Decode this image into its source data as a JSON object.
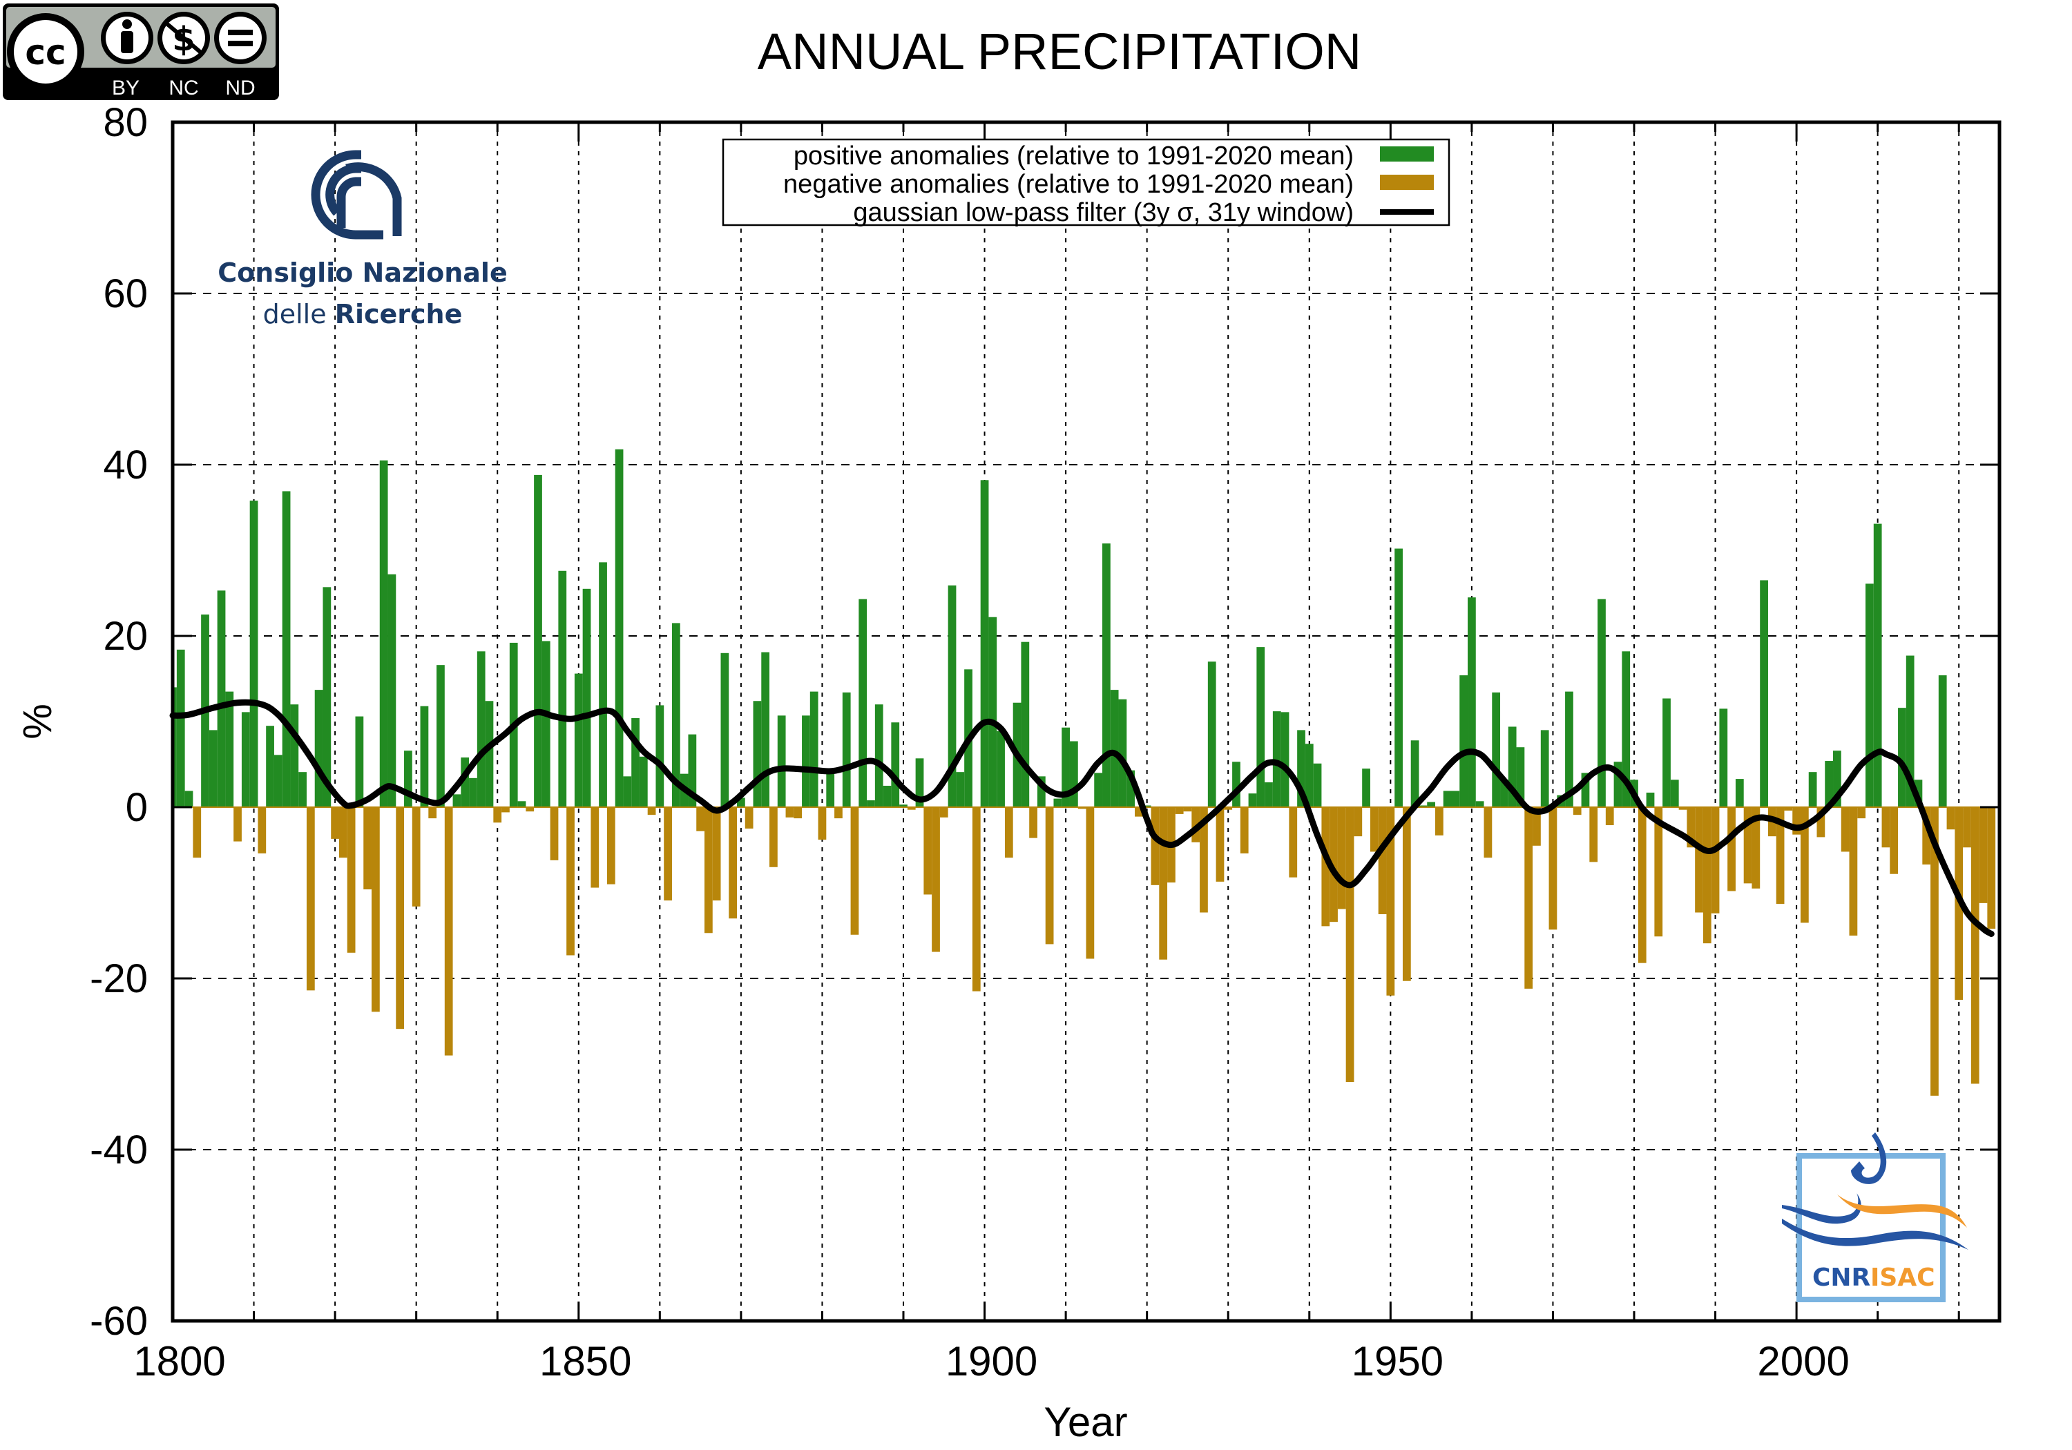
{
  "license_badge": {
    "icon": "creative-commons-by-nc-nd-icon",
    "labels": [
      "BY",
      "NC",
      "ND"
    ],
    "cc_text": "cc"
  },
  "cnr_logo": {
    "line1": "Consiglio Nazionale",
    "line2_light": "delle",
    "line2_bold": "Ricerche",
    "color": "#1b3a66"
  },
  "isac_logo": {
    "left": "CNR",
    "right": "ISAC",
    "blue": "#2655a3",
    "orange": "#f29a2e",
    "frame": "#7ab3e0"
  },
  "colors": {
    "positive": "#228b22",
    "negative": "#b8860b",
    "filter": "#000000"
  },
  "chart_data": {
    "type": "bar",
    "title": "ANNUAL PRECIPITATION",
    "xlabel": "Year",
    "ylabel": "%",
    "xlim": [
      1800,
      2025
    ],
    "ylim": [
      -60,
      80
    ],
    "xticks": [
      1800,
      1850,
      1900,
      1950,
      2000
    ],
    "yticks": [
      -60,
      -40,
      -20,
      0,
      20,
      40,
      60,
      80
    ],
    "grid": true,
    "legend_position": "top-center",
    "legend": [
      {
        "label": "positive anomalies (relative to 1991-2020 mean)",
        "type": "box",
        "color": "#228b22"
      },
      {
        "label": "negative anomalies (relative to 1991-2020 mean)",
        "type": "box",
        "color": "#b8860b"
      },
      {
        "label": "gaussian low-pass filter (3y σ, 31y window)",
        "type": "line",
        "color": "#000000"
      }
    ],
    "start_year": 1800,
    "values": [
      14.0,
      18.4,
      1.9,
      -5.9,
      22.5,
      9.0,
      25.3,
      13.5,
      -4.0,
      11.1,
      35.8,
      -5.4,
      9.5,
      6.1,
      36.9,
      12.0,
      4.1,
      -21.4,
      13.7,
      25.7,
      -3.7,
      -5.9,
      -17.0,
      10.6,
      -9.6,
      -23.9,
      40.5,
      27.2,
      -25.9,
      6.6,
      -11.6,
      11.8,
      -1.3,
      16.6,
      -29.0,
      1.5,
      5.8,
      3.4,
      18.2,
      12.4,
      -1.8,
      -0.6,
      19.2,
      0.7,
      -0.5,
      38.8,
      19.4,
      -6.2,
      27.6,
      -17.3,
      15.6,
      25.5,
      -9.4,
      28.6,
      -9.0,
      41.8,
      3.6,
      10.4,
      5.9,
      -0.9,
      11.9,
      -10.9,
      21.5,
      3.9,
      8.5,
      -2.8,
      -14.7,
      -10.9,
      18.0,
      -13.0,
      1.1,
      -2.5,
      12.4,
      18.1,
      -7.0,
      10.7,
      -1.2,
      -1.3,
      10.7,
      13.5,
      -3.8,
      3.9,
      -1.3,
      13.4,
      -14.9,
      24.3,
      0.8,
      12.0,
      2.5,
      9.9,
      0.3,
      -0.3,
      5.7,
      -10.2,
      -16.9,
      -1.2,
      25.9,
      4.1,
      16.1,
      -21.5,
      38.2,
      22.2,
      8.9,
      -5.9,
      12.2,
      19.3,
      -3.6,
      3.6,
      -16.0,
      1.0,
      9.3,
      7.7,
      -0.2,
      -17.7,
      4.0,
      30.8,
      13.7,
      12.6,
      4.3,
      -1.1,
      0.2,
      -9.1,
      -17.8,
      -8.8,
      -0.8,
      -0.5,
      -4.1,
      -12.3,
      17.0,
      -8.7,
      -0.3,
      5.3,
      -5.4,
      1.6,
      18.7,
      2.9,
      11.2,
      11.1,
      -8.2,
      9.0,
      7.4,
      5.1,
      -13.9,
      -13.4,
      -11.9,
      -32.1,
      -3.4,
      4.5,
      -5.2,
      -12.5,
      -22.0,
      30.2,
      -20.3,
      7.8,
      0.2,
      0.6,
      -3.3,
      1.9,
      1.9,
      15.4,
      24.5,
      0.7,
      -5.9,
      13.4,
      3.2,
      9.4,
      7.0,
      -21.2,
      -4.5,
      9.0,
      -14.3,
      1.4,
      13.5,
      -0.9,
      4.0,
      -6.4,
      24.3,
      -2.1,
      5.3,
      18.2,
      3.2,
      -18.2,
      1.7,
      -15.1,
      12.7,
      3.2,
      -0.3,
      -4.7,
      -12.3,
      -15.9,
      -12.4,
      11.5,
      -9.8,
      3.3,
      -8.9,
      -9.5,
      26.5,
      -3.4,
      -11.3,
      -0.4,
      -3.2,
      -13.5,
      4.1,
      -3.5,
      5.4,
      6.6,
      -5.2,
      -15.0,
      -1.3,
      26.1,
      33.1,
      -4.7,
      -7.8,
      11.6,
      17.7,
      3.2,
      -6.7,
      -33.7,
      15.4,
      -2.6,
      -22.5,
      -4.7,
      -32.3,
      -11.2,
      -14.2
    ],
    "filter": [
      [
        1800,
        10.7
      ],
      [
        1802,
        10.8
      ],
      [
        1805,
        11.6
      ],
      [
        1808,
        12.2
      ],
      [
        1811,
        12.0
      ],
      [
        1813,
        10.8
      ],
      [
        1815,
        8.5
      ],
      [
        1817,
        5.8
      ],
      [
        1819,
        2.8
      ],
      [
        1821,
        0.5
      ],
      [
        1822,
        0.2
      ],
      [
        1824,
        0.9
      ],
      [
        1826,
        2.2
      ],
      [
        1827,
        2.4
      ],
      [
        1829,
        1.6
      ],
      [
        1831,
        0.8
      ],
      [
        1833,
        0.6
      ],
      [
        1835,
        2.5
      ],
      [
        1838,
        6.2
      ],
      [
        1841,
        8.6
      ],
      [
        1843,
        10.3
      ],
      [
        1845,
        11.1
      ],
      [
        1847,
        10.6
      ],
      [
        1849,
        10.3
      ],
      [
        1851,
        10.7
      ],
      [
        1854,
        11.2
      ],
      [
        1856,
        8.9
      ],
      [
        1858,
        6.5
      ],
      [
        1860,
        5.0
      ],
      [
        1862,
        2.9
      ],
      [
        1865,
        0.8
      ],
      [
        1867,
        -0.4
      ],
      [
        1869,
        0.6
      ],
      [
        1871,
        2.3
      ],
      [
        1873,
        3.9
      ],
      [
        1875,
        4.5
      ],
      [
        1878,
        4.4
      ],
      [
        1881,
        4.2
      ],
      [
        1883,
        4.6
      ],
      [
        1886,
        5.4
      ],
      [
        1888,
        4.3
      ],
      [
        1890,
        2.2
      ],
      [
        1892,
        0.9
      ],
      [
        1894,
        1.8
      ],
      [
        1896,
        4.6
      ],
      [
        1898,
        7.8
      ],
      [
        1900,
        9.9
      ],
      [
        1902,
        9.2
      ],
      [
        1904,
        6.1
      ],
      [
        1906,
        3.7
      ],
      [
        1908,
        1.9
      ],
      [
        1910,
        1.5
      ],
      [
        1912,
        2.7
      ],
      [
        1914,
        5.2
      ],
      [
        1916,
        6.3
      ],
      [
        1918,
        3.7
      ],
      [
        1920,
        -1.4
      ],
      [
        1921,
        -3.5
      ],
      [
        1923,
        -4.4
      ],
      [
        1925,
        -3.3
      ],
      [
        1928,
        -0.9
      ],
      [
        1931,
        1.8
      ],
      [
        1933,
        3.7
      ],
      [
        1935,
        5.2
      ],
      [
        1937,
        4.6
      ],
      [
        1939,
        1.8
      ],
      [
        1941,
        -3.3
      ],
      [
        1943,
        -7.5
      ],
      [
        1945,
        -9.1
      ],
      [
        1947,
        -7.3
      ],
      [
        1949,
        -4.7
      ],
      [
        1951,
        -2.2
      ],
      [
        1953,
        0.1
      ],
      [
        1955,
        2.2
      ],
      [
        1957,
        4.7
      ],
      [
        1959,
        6.3
      ],
      [
        1961,
        6.2
      ],
      [
        1963,
        4.2
      ],
      [
        1965,
        2.0
      ],
      [
        1967,
        -0.2
      ],
      [
        1969,
        -0.4
      ],
      [
        1971,
        0.9
      ],
      [
        1973,
        2.2
      ],
      [
        1975,
        4.0
      ],
      [
        1977,
        4.6
      ],
      [
        1979,
        3.0
      ],
      [
        1981,
        -0.1
      ],
      [
        1983,
        -1.7
      ],
      [
        1986,
        -3.3
      ],
      [
        1989,
        -5.1
      ],
      [
        1991,
        -4.2
      ],
      [
        1993,
        -2.5
      ],
      [
        1995,
        -1.3
      ],
      [
        1997,
        -1.4
      ],
      [
        2000,
        -2.4
      ],
      [
        2002,
        -1.6
      ],
      [
        2004,
        0.1
      ],
      [
        2006,
        2.4
      ],
      [
        2008,
        5.0
      ],
      [
        2010,
        6.4
      ],
      [
        2011,
        6.2
      ],
      [
        2013,
        5.0
      ],
      [
        2015,
        0.8
      ],
      [
        2017,
        -4.2
      ],
      [
        2019,
        -8.5
      ],
      [
        2021,
        -12.3
      ],
      [
        2023,
        -14.2
      ],
      [
        2024,
        -14.8
      ]
    ]
  }
}
